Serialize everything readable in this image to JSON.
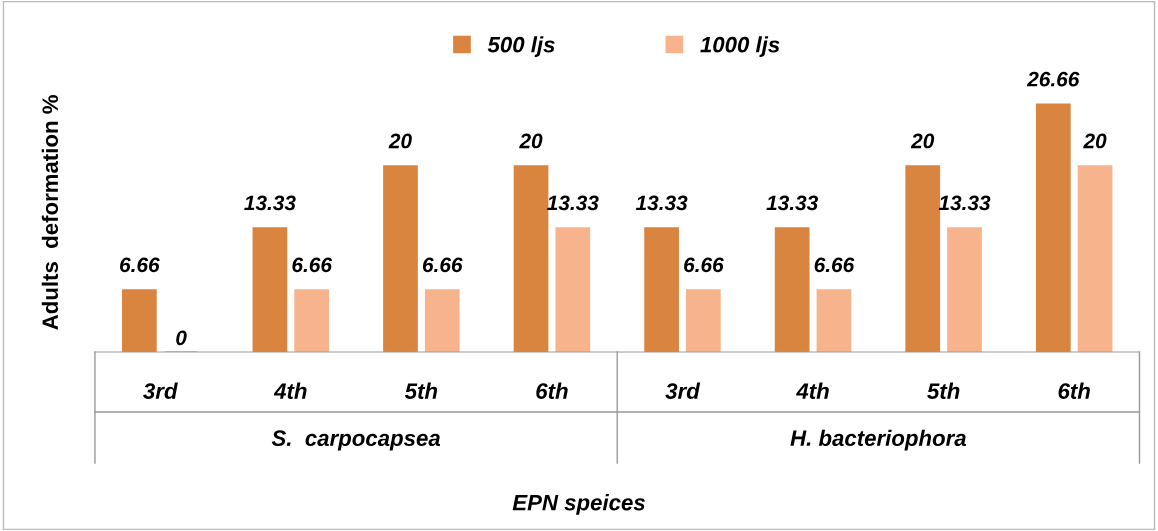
{
  "chart_data": {
    "type": "bar",
    "xlabel": "EPN speices",
    "ylabel": "Adults  deformation %",
    "categories": [
      "3rd",
      "4th",
      "5th",
      "6th",
      "3rd",
      "4th",
      "5th",
      "6th"
    ],
    "series": [
      {
        "name": "500 ljs",
        "color": "#d9843f",
        "values": [
          6.66,
          13.33,
          20,
          20,
          13.33,
          13.33,
          20,
          26.66
        ]
      },
      {
        "name": "1000 ljs",
        "color": "#f7b48c",
        "values": [
          0,
          6.66,
          6.66,
          13.33,
          6.66,
          6.66,
          13.33,
          20
        ]
      }
    ],
    "annotations": [
      "S.  carpocapsea",
      "H. bacteriophora"
    ],
    "data_labels": true,
    "legend": "top",
    "tick_labels": "x",
    "grid": false
  }
}
